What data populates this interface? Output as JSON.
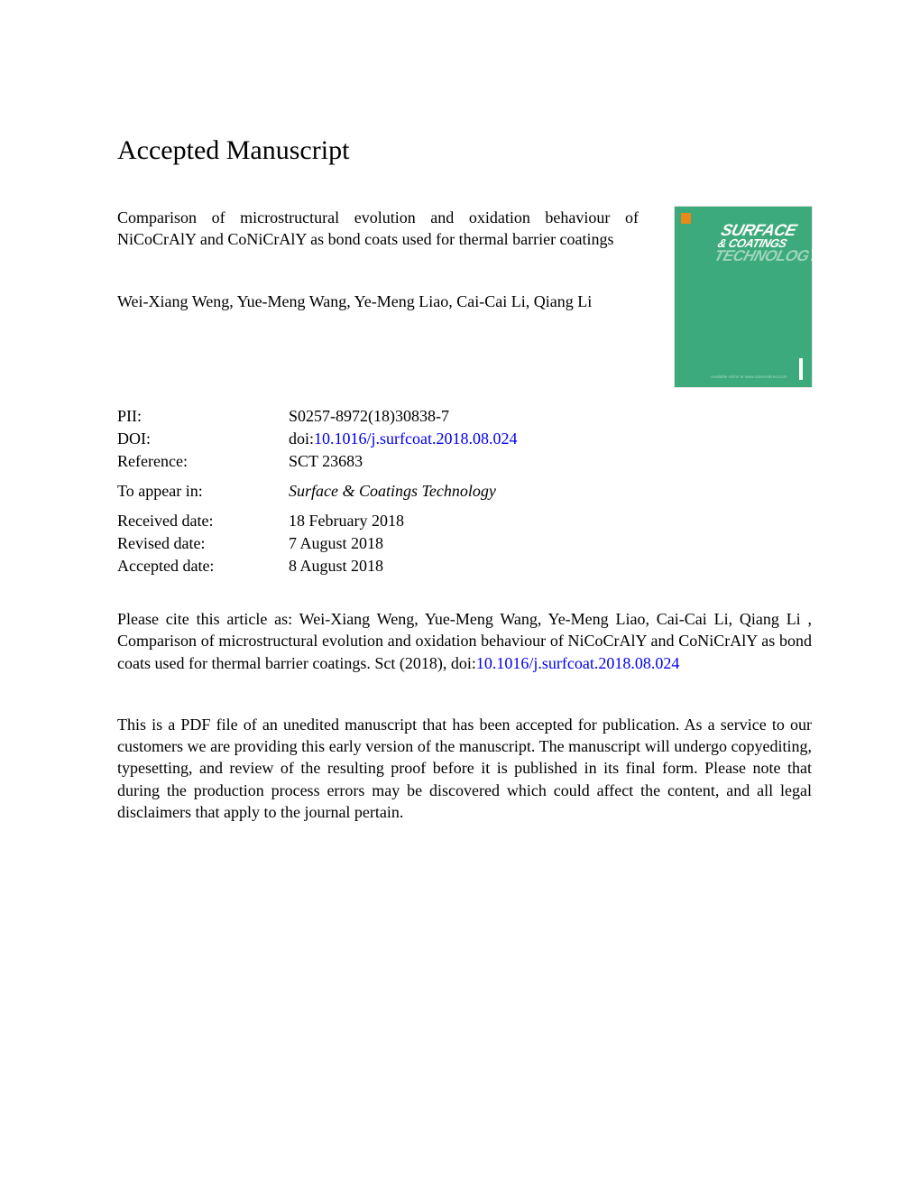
{
  "heading": "Accepted Manuscript",
  "title": "Comparison of microstructural evolution and oxidation behaviour of NiCoCrAlY and CoNiCrAlY as bond coats used for thermal barrier coatings",
  "authors": "Wei-Xiang Weng, Yue-Meng Wang, Ye-Meng Liao, Cai-Cai Li, Qiang Li",
  "cover": {
    "line1": "SURFACE",
    "line2": "& COATINGS",
    "line3": "TECHNOLOGY",
    "small": "Available online at www.sciencedirect.com"
  },
  "meta": {
    "pii_label": "PII:",
    "pii": "S0257-8972(18)30838-7",
    "doi_label": "DOI:",
    "doi_prefix": "doi:",
    "doi": "10.1016/j.surfcoat.2018.08.024",
    "ref_label": "Reference:",
    "ref": "SCT 23683",
    "appear_label": "To appear in:",
    "journal": "Surface & Coatings Technology",
    "received_label": "Received date:",
    "received": "18 February 2018",
    "revised_label": "Revised date:",
    "revised": "7 August 2018",
    "accepted_label": "Accepted date:",
    "accepted": "8 August 2018"
  },
  "citation": {
    "pre": "Please cite this article as: Wei-Xiang Weng, Yue-Meng Wang, Ye-Meng Liao, Cai-Cai Li, Qiang Li , Comparison of microstructural evolution and oxidation behaviour of NiCoCrAlY and CoNiCrAlY as bond coats used for thermal barrier coatings. Sct (2018), doi:",
    "link": "10.1016/j.surfcoat.2018.08.024"
  },
  "disclaimer": "This is a PDF file of an unedited manuscript that has been accepted for publication. As a service to our customers we are providing this early version of the manuscript. The manuscript will undergo copyediting, typesetting, and review of the resulting proof before it is published in its final form. Please note that during the production process errors may be discovered which could affect the content, and all legal disclaimers that apply to the journal pertain."
}
